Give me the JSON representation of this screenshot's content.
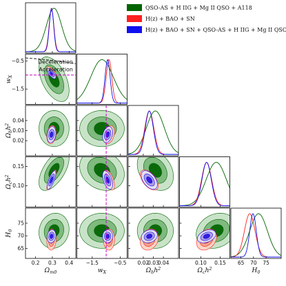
{
  "chart_data": {
    "type": "corner",
    "parameters": [
      {
        "key": "om",
        "label": "Ωm0",
        "range": [
          0.14,
          0.44
        ],
        "ticks": [
          0.2,
          0.3,
          0.4
        ],
        "tick_labels": [
          "0.2",
          "0.3",
          "0.4"
        ]
      },
      {
        "key": "wx",
        "label": "wX",
        "range": [
          -2.05,
          -0.25
        ],
        "ticks": [
          -1.5,
          -0.5
        ],
        "tick_labels": [
          "−1.5",
          "−0.5"
        ]
      },
      {
        "key": "obh2",
        "label": "Ωbh2",
        "range": [
          0.005,
          0.055
        ],
        "ticks": [
          0.02,
          0.03,
          0.04
        ],
        "tick_labels": [
          "0.02",
          "0.03",
          "0.04"
        ]
      },
      {
        "key": "och2",
        "label": "Ωch2",
        "range": [
          0.045,
          0.175
        ],
        "ticks": [
          0.1,
          0.15
        ],
        "tick_labels": [
          "0.10",
          "0.15"
        ]
      },
      {
        "key": "h0",
        "label": "H0",
        "range": [
          61,
          81
        ],
        "ticks": [
          65,
          70,
          75
        ],
        "tick_labels": [
          "65",
          "70",
          "75"
        ]
      }
    ],
    "series": [
      {
        "name": "QSO-AS + H IIG + Mg II QSO + A118",
        "color": "#006400",
        "mean": {
          "om": 0.31,
          "wx": -1.15,
          "obh2": 0.032,
          "och2": 0.14,
          "h0": 72.0
        },
        "sigma": {
          "om": 0.045,
          "wx": 0.4,
          "obh2": 0.009,
          "och2": 0.026,
          "h0": 3.5
        },
        "corr": {
          "om|wx": -0.5,
          "om|obh2": 0.0,
          "wx|obh2": 0.0,
          "om|och2": 0.6,
          "wx|och2": -0.2,
          "obh2|och2": -0.3,
          "om|h0": 0.1,
          "wx|h0": 0.0,
          "obh2|h0": 0.0,
          "och2|h0": 0.2
        }
      },
      {
        "name": "H(z) + BAO + SN",
        "color": "#ff2020",
        "mean": {
          "om": 0.295,
          "wx": -0.9,
          "obh2": 0.026,
          "och2": 0.115,
          "h0": 68.5
        },
        "sigma": {
          "om": 0.014,
          "wx": 0.1,
          "obh2": 0.0045,
          "och2": 0.013,
          "h0": 2.1
        },
        "corr": {
          "om|wx": -0.7,
          "om|obh2": 0.2,
          "wx|obh2": 0.3,
          "om|och2": 0.8,
          "wx|och2": -0.55,
          "obh2|och2": -0.55,
          "om|h0": 0.1,
          "wx|h0": 0.0,
          "obh2|h0": 0.2,
          "och2|h0": 0.3
        }
      },
      {
        "name": "H(z) + BAO + SN + QSO-AS + H IIG + Mg II QSO + A118",
        "color": "#1010ee",
        "mean": {
          "om": 0.295,
          "wx": -0.95,
          "obh2": 0.026,
          "och2": 0.115,
          "h0": 69.8
        },
        "sigma": {
          "om": 0.013,
          "wx": 0.09,
          "obh2": 0.004,
          "och2": 0.012,
          "h0": 1.3
        },
        "corr": {
          "om|wx": -0.7,
          "om|obh2": 0.2,
          "wx|obh2": 0.3,
          "om|och2": 0.75,
          "wx|och2": -0.5,
          "obh2|och2": -0.5,
          "om|h0": 0.15,
          "wx|h0": 0.0,
          "obh2|h0": 0.2,
          "och2|h0": 0.35
        }
      }
    ],
    "reference_lines": {
      "wx": -1.0
    },
    "annotations": {
      "upper": "Deceleration",
      "lower": "Acceleration"
    },
    "legend_position": "top-right"
  }
}
